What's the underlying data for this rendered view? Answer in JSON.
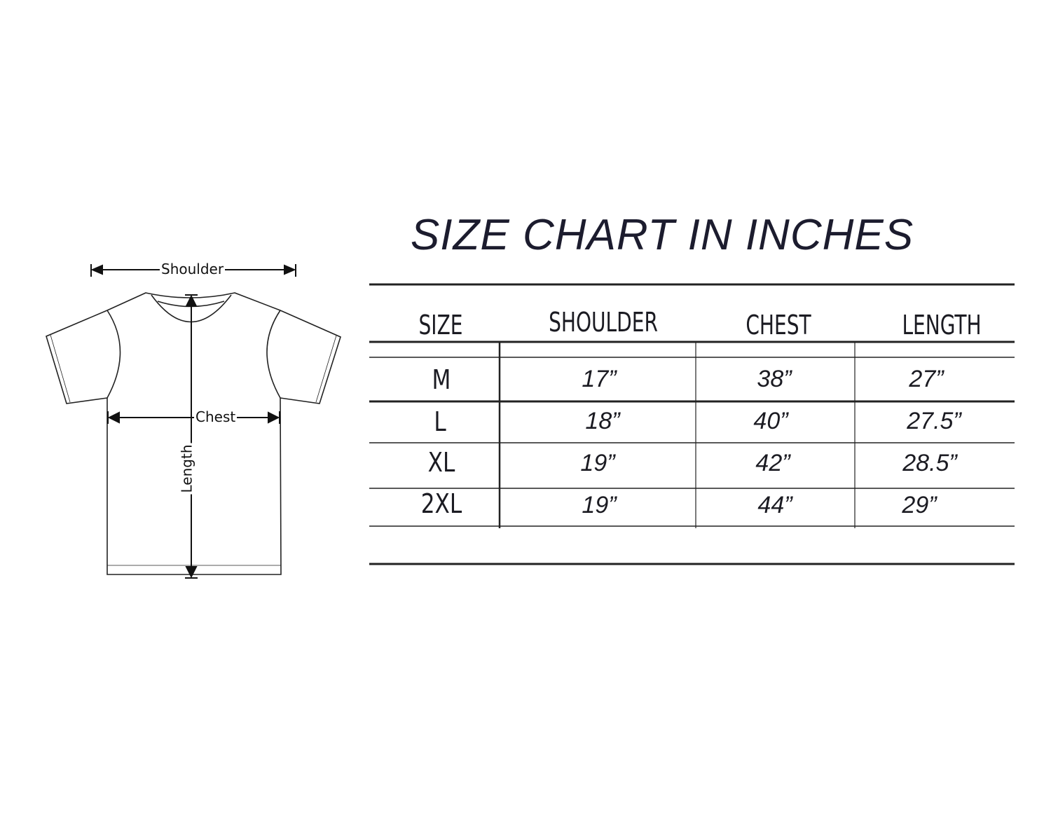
{
  "title": "SIZE CHART IN INCHES",
  "diagram": {
    "shoulder_label": "Shoulder",
    "chest_label": "Chest",
    "length_label": "Length"
  },
  "table": {
    "headers": [
      "SIZE",
      "SHOULDER",
      "CHEST",
      "LENGTH"
    ],
    "rows": [
      {
        "size": "M",
        "shoulder": "17”",
        "chest": "38”",
        "length": "27”"
      },
      {
        "size": "L",
        "shoulder": "18”",
        "chest": "40”",
        "length": "27.5”"
      },
      {
        "size": "XL",
        "shoulder": "19”",
        "chest": "42”",
        "length": "28.5”"
      },
      {
        "size": "2XL",
        "shoulder": "19”",
        "chest": "44”",
        "length": "29”"
      }
    ]
  },
  "colors": {
    "text": "#1c1c2e",
    "lines": "#222222"
  }
}
